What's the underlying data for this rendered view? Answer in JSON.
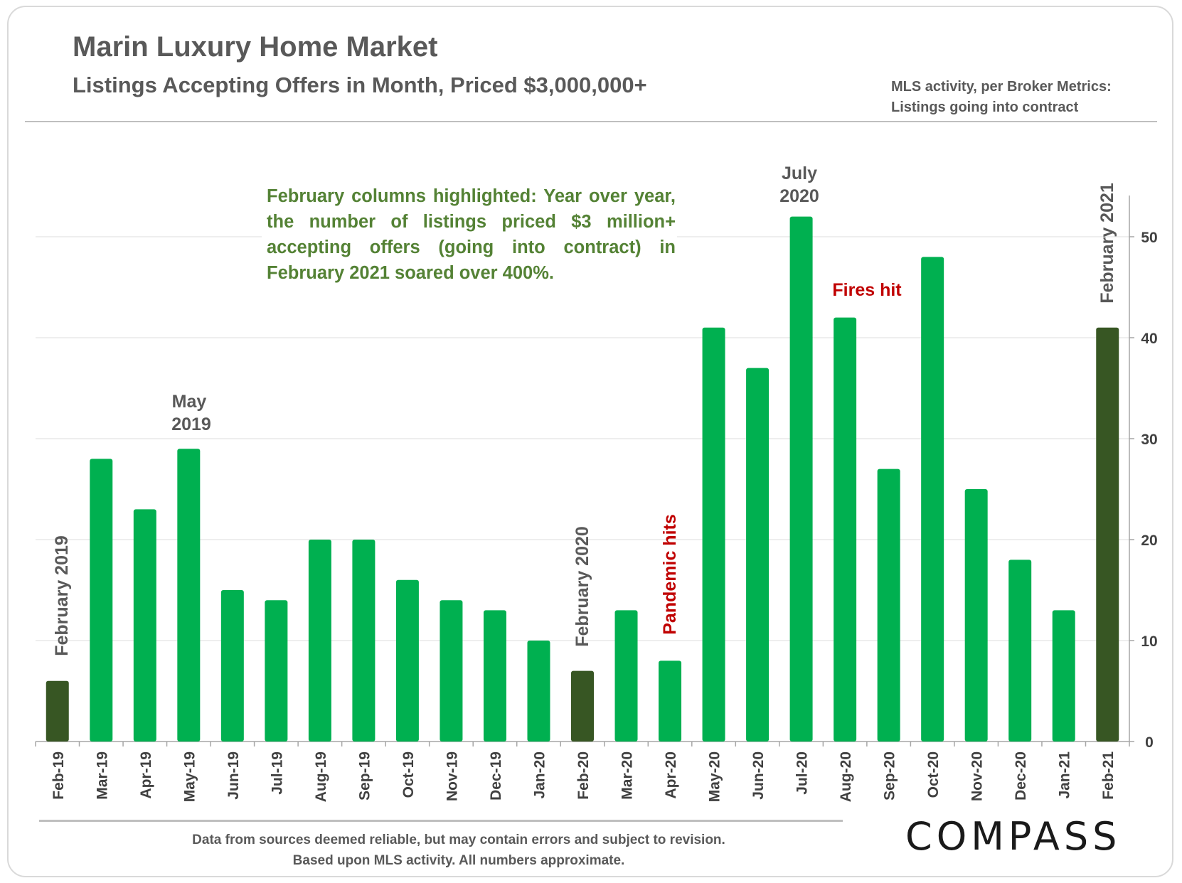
{
  "header": {
    "title": "Marin Luxury Home Market",
    "subtitle": "Listings Accepting Offers in Month, Priced $3,000,000+",
    "source_line1": "MLS activity, per Broker Metrics:",
    "source_line2": "Listings going into contract"
  },
  "footer": {
    "note_line1": "Data from sources deemed reliable, but may contain errors and subject to revision.",
    "note_line2": "Based upon MLS activity. All numbers approximate.",
    "logo": "COMPASS"
  },
  "annotations": {
    "callout": "February columns highlighted: Year over year, the number of listings priced $3 million+ accepting offers (going into contract) in February 2021 soared over 400%.",
    "may_2019_line1": "May",
    "may_2019_line2": "2019",
    "july_2020_line1": "July",
    "july_2020_line2": "2020",
    "fires_hit": "Fires hit",
    "pandemic_hits": "Pandemic hits",
    "feb_2019": "February 2019",
    "feb_2020": "February 2020",
    "feb_2021": "February 2021"
  },
  "colors": {
    "bar": "#00b050",
    "highlight_bar": "#375623",
    "callout_text": "#548235",
    "alert_text": "#c00000",
    "label_text": "#595959"
  },
  "chart_data": {
    "type": "bar",
    "categories": [
      "Feb-19",
      "Mar-19",
      "Apr-19",
      "May-19",
      "Jun-19",
      "Jul-19",
      "Aug-19",
      "Sep-19",
      "Oct-19",
      "Nov-19",
      "Dec-19",
      "Jan-20",
      "Feb-20",
      "Mar-20",
      "Apr-20",
      "May-20",
      "Jun-20",
      "Jul-20",
      "Aug-20",
      "Sep-20",
      "Oct-20",
      "Nov-20",
      "Dec-20",
      "Jan-21",
      "Feb-21"
    ],
    "values": [
      6,
      28,
      23,
      29,
      15,
      14,
      20,
      20,
      16,
      14,
      13,
      10,
      7,
      13,
      8,
      41,
      37,
      52,
      42,
      27,
      48,
      25,
      18,
      13,
      41
    ],
    "highlighted": [
      "Feb-19",
      "Feb-20",
      "Feb-21"
    ],
    "ylim": [
      0,
      54
    ],
    "yticks": [
      0,
      10,
      20,
      30,
      40,
      50
    ],
    "y_axis_side": "right",
    "grid": true,
    "title": "Marin Luxury Home Market",
    "xlabel": "",
    "ylabel": ""
  }
}
